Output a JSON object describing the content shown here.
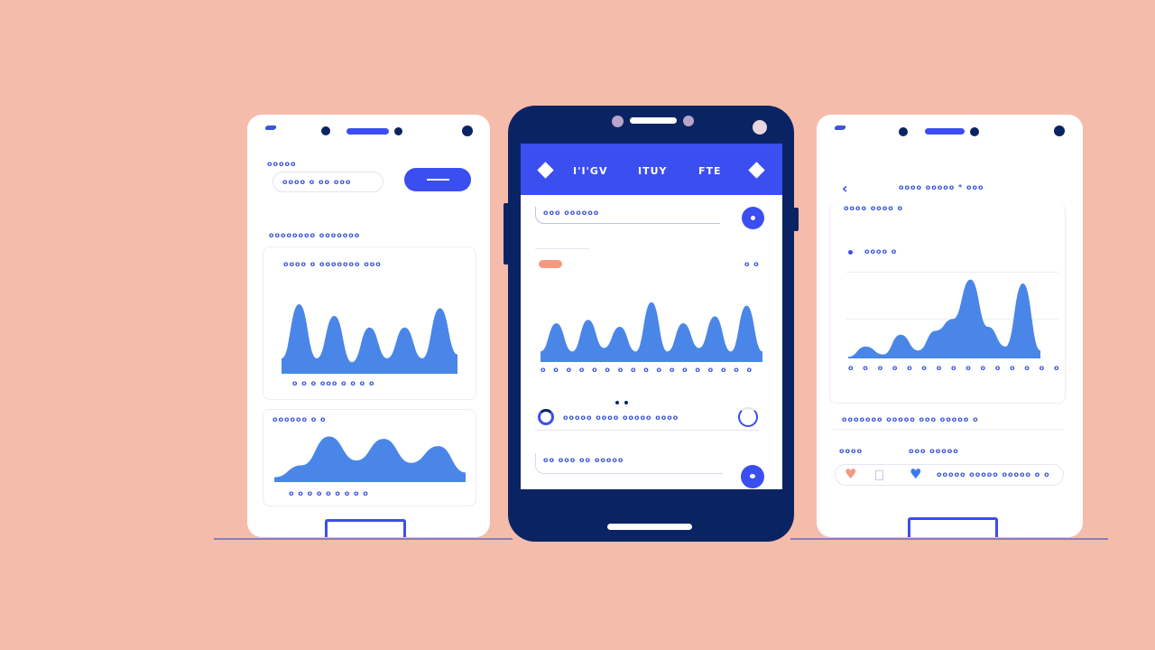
{
  "colors": {
    "background": "#f5bcab",
    "accent": "#3b4ef0",
    "navy": "#0a2463",
    "chart": "#4a86e8",
    "coral": "#f39a82"
  },
  "left_phone": {
    "label": "ooooo",
    "input_text": "oooo o oo ooo",
    "card1": {
      "title": "oooooooo ooooooo",
      "legend": "oooo   o  ooooooo ooo",
      "xticks": "o  o  o  ooo  o  o  o  o",
      "series": [
        0.2,
        0.9,
        0.2,
        0.75,
        0.15,
        0.6,
        0.2,
        0.6,
        0.2,
        0.85,
        0.25
      ]
    },
    "card2": {
      "title": "oooooo o o",
      "xticks": "o  o  o  o  o  o  o  o  o",
      "series": [
        0.1,
        0.35,
        0.95,
        0.45,
        0.9,
        0.4,
        0.75,
        0.2
      ]
    }
  },
  "center_phone": {
    "tabs": [
      "I'I'GV",
      "ITUY",
      "FTE"
    ],
    "search_text": "ooo oooooo",
    "legend_right": "o o",
    "chart": {
      "xticks": "o o o o o o o o o o o o o o o o o",
      "series": [
        0.15,
        0.55,
        0.15,
        0.6,
        0.2,
        0.5,
        0.15,
        0.85,
        0.15,
        0.55,
        0.2,
        0.65,
        0.15,
        0.8,
        0.15
      ]
    },
    "list_item_1": "ooooo oooo  ooooo oooo",
    "list_item_2": "oo ooo oo ooooo"
  },
  "right_phone": {
    "header_title": "oooo ooooo  *   ooo",
    "subtitle": "oooo oooo o",
    "legend": "oooo o",
    "chart": {
      "xticks": "o o o o o o o o o o o o o o o",
      "series": [
        0.02,
        0.15,
        0.05,
        0.3,
        0.1,
        0.35,
        0.5,
        1.0,
        0.4,
        0.15,
        0.95,
        0.1
      ]
    },
    "row_text": "ooooooo ooooo ooo   ooooo o",
    "tag_1": "oooo",
    "tag_2": "ooo ooooo",
    "footer_text": "ooooo ooooo ooooo o o"
  }
}
